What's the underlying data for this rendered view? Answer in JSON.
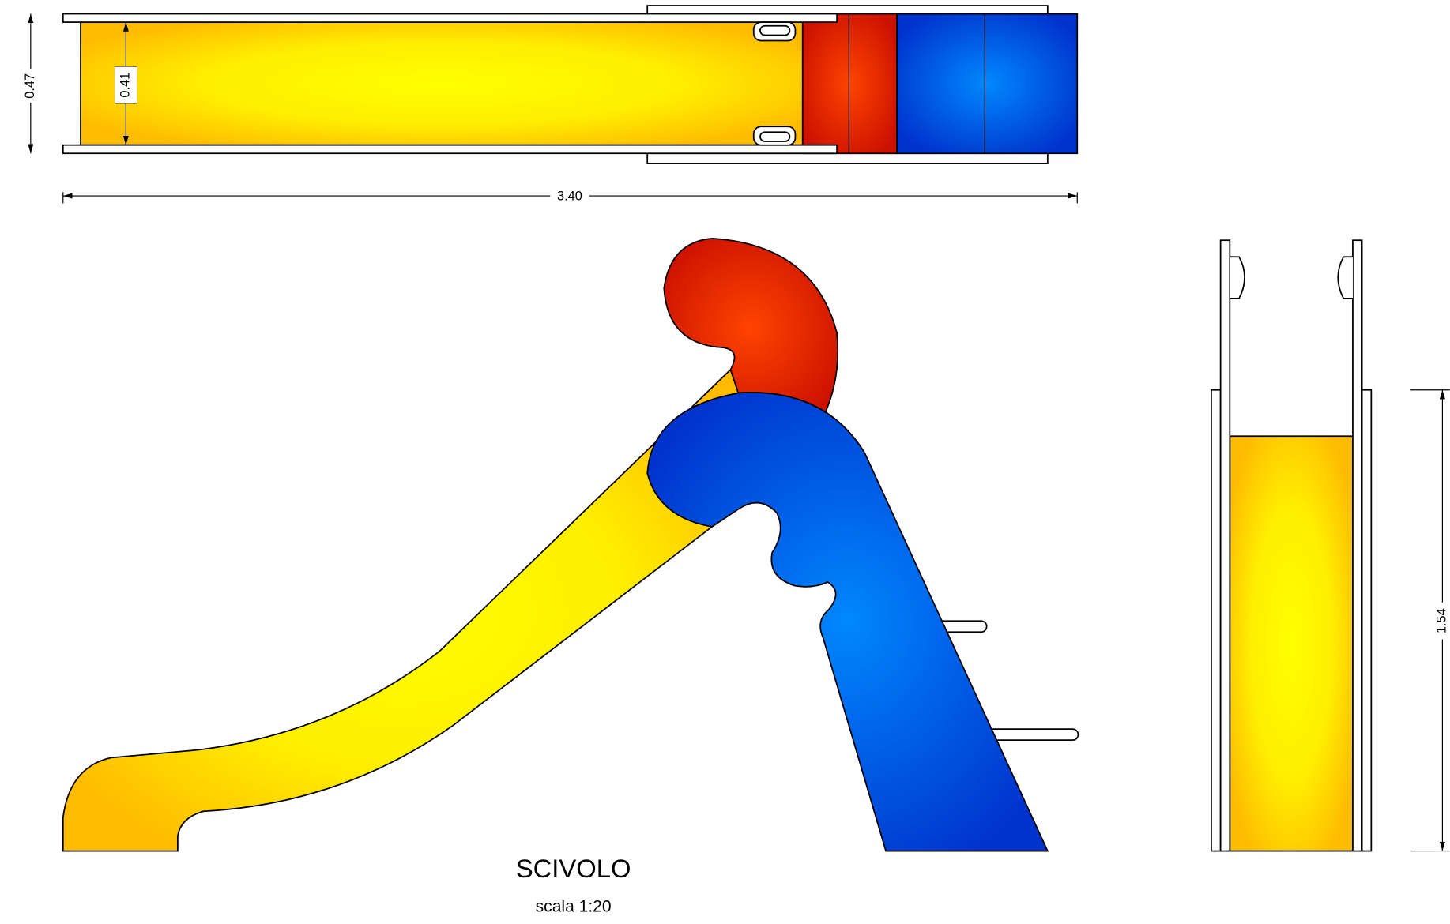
{
  "dimensions": {
    "outer_width": "0.47",
    "inner_width": "0.41",
    "overall_length": "3.40",
    "height": "1.54"
  },
  "title": "SCIVOLO",
  "scale": "scala 1:20"
}
